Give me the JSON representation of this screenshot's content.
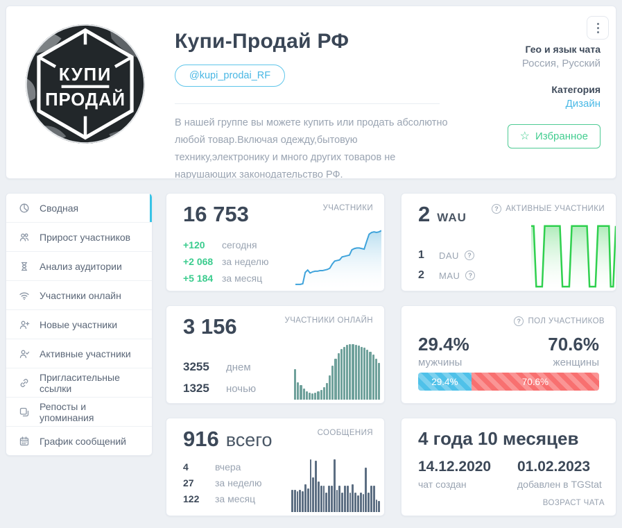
{
  "profile": {
    "title": "Купи-Продай РФ",
    "username": "@kupi_prodai_RF",
    "avatar": {
      "line1": "КУПИ",
      "line2": "ПРОДАЙ"
    },
    "description": "В нашей группе вы можете купить или продать абсолютно любой товар.Включая одежду,бытовую технику,электронику и много других товаров не нарушающих законодательство РФ.",
    "geo": {
      "label": "Гео и язык чата",
      "value": "Россия, Русский"
    },
    "category": {
      "label": "Категория",
      "value": "Дизайн"
    },
    "favorite_button": "Избранное"
  },
  "sidebar": {
    "items": [
      {
        "label": "Сводная",
        "icon": "pie-chart-icon",
        "active": true
      },
      {
        "label": "Прирост участников",
        "icon": "users-icon",
        "active": false
      },
      {
        "label": "Анализ аудитории",
        "icon": "hourglass-icon",
        "active": false
      },
      {
        "label": "Участники онлайн",
        "icon": "wifi-icon",
        "active": false
      },
      {
        "label": "Новые участники",
        "icon": "user-plus-icon",
        "active": false
      },
      {
        "label": "Активные участники",
        "icon": "user-check-icon",
        "active": false
      },
      {
        "label": "Пригласительные ссылки",
        "icon": "link-icon",
        "active": false
      },
      {
        "label": "Репосты и упоминания",
        "icon": "repost-icon",
        "active": false
      },
      {
        "label": "График сообщений",
        "icon": "calendar-icon",
        "active": false
      }
    ]
  },
  "cards": {
    "members": {
      "label": "УЧАСТНИКИ",
      "value": "16 753",
      "stats": [
        {
          "value": "+120",
          "label": "сегодня"
        },
        {
          "value": "+2 068",
          "label": "за неделю"
        },
        {
          "value": "+5 184",
          "label": "за месяц"
        }
      ]
    },
    "active_members": {
      "label": "АКТИВНЫЕ УЧАСТНИКИ",
      "value": "2",
      "unit": "WAU",
      "stats": [
        {
          "value": "1",
          "label": "DAU"
        },
        {
          "value": "2",
          "label": "MAU"
        }
      ]
    },
    "online": {
      "label": "УЧАСТНИКИ ОНЛАЙН",
      "value": "3 156",
      "stats": [
        {
          "value": "3255",
          "label": "днем"
        },
        {
          "value": "1325",
          "label": "ночью"
        }
      ]
    },
    "gender": {
      "label": "ПОЛ УЧАСТНИКОВ",
      "male": {
        "value": "29.4%",
        "label": "мужчины"
      },
      "female": {
        "value": "70.6%",
        "label": "женщины"
      }
    },
    "messages": {
      "label": "СООБЩЕНИЯ",
      "value": "916",
      "unit": "всего",
      "stats": [
        {
          "value": "4",
          "label": "вчера"
        },
        {
          "value": "27",
          "label": "за неделю"
        },
        {
          "value": "122",
          "label": "за месяц"
        }
      ]
    },
    "age": {
      "label": "ВОЗРАСТ ЧАТА",
      "value": "4 года 10 месяцев",
      "created": {
        "value": "14.12.2020",
        "label": "чат создан"
      },
      "added": {
        "value": "01.02.2023",
        "label": "добавлен в TGStat"
      }
    }
  },
  "colors": {
    "accent_cyan": "#4ab9e6",
    "accent_green": "#3bcc8e",
    "chart_blue": "#3fa3db",
    "chart_green": "#2fd04e",
    "chart_teal": "#6fa19b",
    "chart_slate": "#5c6e82",
    "gender_male": "#4fc1e9",
    "gender_female": "#f87070"
  },
  "chart_data": [
    {
      "type": "area",
      "name": "members-trend",
      "color": "#3fa3db",
      "values": [
        6,
        6,
        6,
        7,
        26,
        30,
        25,
        27,
        28,
        28,
        29,
        29,
        30,
        31,
        33,
        40,
        45,
        46,
        47,
        52,
        53,
        54,
        55,
        64,
        66,
        67,
        67,
        66,
        65,
        78,
        90,
        93,
        94,
        93,
        94,
        96
      ]
    },
    {
      "type": "area-step",
      "name": "active-members-trend",
      "color": "#2fd04e",
      "points": [
        [
          0,
          95
        ],
        [
          3,
          95
        ],
        [
          6,
          2
        ],
        [
          13,
          2
        ],
        [
          16,
          95
        ],
        [
          34,
          95
        ],
        [
          37,
          2
        ],
        [
          45,
          2
        ],
        [
          48,
          95
        ],
        [
          66,
          95
        ],
        [
          69,
          2
        ],
        [
          76,
          2
        ],
        [
          79,
          95
        ],
        [
          92,
          95
        ],
        [
          94,
          2
        ],
        [
          97,
          2
        ],
        [
          100,
          95
        ]
      ]
    },
    {
      "type": "bar",
      "name": "online-by-hour",
      "color": "#6fa19b",
      "values": [
        52,
        30,
        25,
        19,
        14,
        12,
        11,
        12,
        14,
        17,
        22,
        28,
        42,
        58,
        70,
        80,
        87,
        91,
        94,
        95,
        95,
        94,
        93,
        91,
        89,
        86,
        82,
        77,
        70,
        63
      ]
    },
    {
      "type": "bar",
      "name": "messages-per-day",
      "color": "#5c6e82",
      "values": [
        40,
        40,
        38,
        40,
        38,
        50,
        42,
        95,
        62,
        92,
        55,
        48,
        48,
        35,
        48,
        48,
        95,
        40,
        48,
        35,
        48,
        48,
        35,
        50,
        35,
        30,
        35,
        32,
        80,
        35,
        48,
        48,
        22,
        20
      ]
    },
    {
      "type": "stacked-bar",
      "name": "gender-split",
      "segments": [
        {
          "label": "29.4%",
          "value": 29.4,
          "color": "#4fc1e9"
        },
        {
          "label": "70.6%",
          "value": 70.6,
          "color": "#f87070"
        }
      ]
    }
  ]
}
